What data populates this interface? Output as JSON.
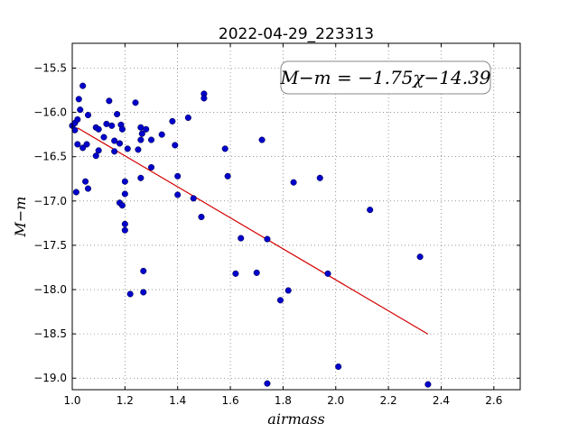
{
  "chart_data": {
    "type": "scatter",
    "title": "2022-04-29_223313",
    "xlabel": "airmass",
    "ylabel": "M−m",
    "xlim": [
      1.0,
      2.7
    ],
    "ylim": [
      -19.13,
      -15.22
    ],
    "x_ticks": [
      "1.0",
      "1.2",
      "1.4",
      "1.6",
      "1.8",
      "2.0",
      "2.2",
      "2.4",
      "2.6"
    ],
    "y_ticks": [
      "−15.5",
      "−16.0",
      "−16.5",
      "−17.0",
      "−17.5",
      "−18.0",
      "−18.5",
      "−19.0"
    ],
    "grid": true,
    "annotation": "M−m = −1.75χ−14.39",
    "fit": {
      "slope": -1.75,
      "intercept": -14.39,
      "x_range": [
        1.02,
        2.35
      ],
      "color": "#d40000"
    },
    "point_color": "#0000cc",
    "points": [
      [
        1.0,
        -16.15
      ],
      [
        1.01,
        -16.2
      ],
      [
        1.01,
        -16.12
      ],
      [
        1.015,
        -16.9
      ],
      [
        1.02,
        -16.08
      ],
      [
        1.02,
        -16.36
      ],
      [
        1.025,
        -15.85
      ],
      [
        1.03,
        -15.97
      ],
      [
        1.04,
        -16.4
      ],
      [
        1.04,
        -15.7
      ],
      [
        1.05,
        -16.78
      ],
      [
        1.055,
        -16.36
      ],
      [
        1.06,
        -16.03
      ],
      [
        1.06,
        -16.86
      ],
      [
        1.09,
        -16.17
      ],
      [
        1.09,
        -16.49
      ],
      [
        1.1,
        -16.19
      ],
      [
        1.1,
        -16.43
      ],
      [
        1.12,
        -16.28
      ],
      [
        1.13,
        -16.13
      ],
      [
        1.14,
        -15.87
      ],
      [
        1.15,
        -16.15
      ],
      [
        1.16,
        -16.32
      ],
      [
        1.16,
        -16.44
      ],
      [
        1.17,
        -16.02
      ],
      [
        1.18,
        -16.35
      ],
      [
        1.18,
        -17.02
      ],
      [
        1.185,
        -16.14
      ],
      [
        1.19,
        -17.05
      ],
      [
        1.19,
        -16.19
      ],
      [
        1.2,
        -16.92
      ],
      [
        1.2,
        -16.78
      ],
      [
        1.2,
        -17.26
      ],
      [
        1.2,
        -17.33
      ],
      [
        1.21,
        -16.41
      ],
      [
        1.22,
        -18.05
      ],
      [
        1.24,
        -15.89
      ],
      [
        1.25,
        -16.42
      ],
      [
        1.26,
        -16.17
      ],
      [
        1.26,
        -16.31
      ],
      [
        1.26,
        -16.74
      ],
      [
        1.265,
        -16.24
      ],
      [
        1.27,
        -17.79
      ],
      [
        1.27,
        -18.03
      ],
      [
        1.28,
        -16.19
      ],
      [
        1.3,
        -16.62
      ],
      [
        1.3,
        -16.31
      ],
      [
        1.34,
        -16.25
      ],
      [
        1.38,
        -16.1
      ],
      [
        1.39,
        -16.37
      ],
      [
        1.4,
        -16.72
      ],
      [
        1.4,
        -16.93
      ],
      [
        1.44,
        -16.06
      ],
      [
        1.46,
        -16.97
      ],
      [
        1.49,
        -17.18
      ],
      [
        1.5,
        -15.79
      ],
      [
        1.5,
        -15.84
      ],
      [
        1.58,
        -16.41
      ],
      [
        1.59,
        -16.72
      ],
      [
        1.62,
        -17.82
      ],
      [
        1.64,
        -17.42
      ],
      [
        1.7,
        -17.81
      ],
      [
        1.72,
        -16.31
      ],
      [
        1.74,
        -17.43
      ],
      [
        1.74,
        -19.06
      ],
      [
        1.79,
        -18.12
      ],
      [
        1.82,
        -18.01
      ],
      [
        1.84,
        -16.79
      ],
      [
        1.94,
        -16.74
      ],
      [
        1.97,
        -17.82
      ],
      [
        2.01,
        -18.87
      ],
      [
        2.13,
        -17.1
      ],
      [
        2.32,
        -17.63
      ],
      [
        2.35,
        -19.07
      ]
    ]
  }
}
